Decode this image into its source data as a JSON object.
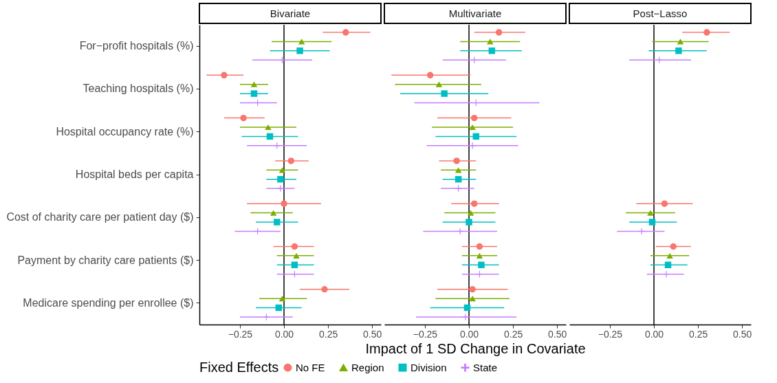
{
  "chart_data": [
    {
      "type": "scatter",
      "orientation": "horizontal",
      "title": "Bivariate",
      "categories": [
        "For−profit hospitals (%)",
        "Teaching hospitals (%)",
        "Hospital occupancy rate (%)",
        "Hospital beds per capita",
        "Cost of charity care per patient day ($)",
        "Payment by charity care patients ($)",
        "Medicare spending per enrollee ($)"
      ],
      "xlim": [
        -0.48,
        0.55
      ],
      "xticks": [
        {
          "value": -0.25,
          "label": "−0.25"
        },
        {
          "value": 0,
          "label": "0.00"
        },
        {
          "value": 0.25,
          "label": "0.25"
        },
        {
          "value": 0.5,
          "label": "0.50"
        }
      ],
      "ref_lines": [
        {
          "axis": "x",
          "value": 0
        }
      ],
      "legend": "bottom",
      "legend_title": "Fixed Effects",
      "series": [
        {
          "name": "No FE",
          "color": "#f8766d",
          "marker": "circle",
          "values": [
            0.35,
            -0.34,
            -0.23,
            0.04,
            0.0,
            0.06,
            0.23
          ],
          "errors": [
            [
              0.22,
              0.49
            ],
            [
              -0.44,
              -0.23
            ],
            [
              -0.34,
              -0.11
            ],
            [
              -0.05,
              0.14
            ],
            [
              -0.21,
              0.21
            ],
            [
              -0.06,
              0.17
            ],
            [
              0.09,
              0.37
            ]
          ]
        },
        {
          "name": "Region",
          "color": "#7cae00",
          "marker": "triangle",
          "values": [
            0.1,
            -0.17,
            -0.09,
            -0.01,
            -0.06,
            0.07,
            -0.01
          ],
          "errors": [
            [
              -0.07,
              0.27
            ],
            [
              -0.25,
              -0.09
            ],
            [
              -0.25,
              0.07
            ],
            [
              -0.1,
              0.08
            ],
            [
              -0.19,
              0.05
            ],
            [
              -0.04,
              0.17
            ],
            [
              -0.14,
              0.13
            ]
          ]
        },
        {
          "name": "Division",
          "color": "#00bfc4",
          "marker": "square",
          "values": [
            0.09,
            -0.17,
            -0.08,
            -0.02,
            -0.04,
            0.06,
            -0.03
          ],
          "errors": [
            [
              -0.08,
              0.26
            ],
            [
              -0.25,
              -0.09
            ],
            [
              -0.24,
              0.08
            ],
            [
              -0.1,
              0.07
            ],
            [
              -0.16,
              0.08
            ],
            [
              -0.04,
              0.17
            ],
            [
              -0.16,
              0.1
            ]
          ]
        },
        {
          "name": "State",
          "color": "#c77cff",
          "marker": "cross",
          "values": [
            -0.01,
            -0.15,
            -0.04,
            -0.02,
            -0.15,
            0.06,
            -0.1
          ],
          "errors": [
            [
              -0.18,
              0.16
            ],
            [
              -0.25,
              -0.04
            ],
            [
              -0.21,
              0.13
            ],
            [
              -0.1,
              0.06
            ],
            [
              -0.28,
              -0.02
            ],
            [
              -0.04,
              0.17
            ],
            [
              -0.25,
              0.05
            ]
          ]
        }
      ]
    },
    {
      "type": "scatter",
      "orientation": "horizontal",
      "title": "Multivariate",
      "xlabel": "Impact of 1 SD Change in Covariate",
      "tick_labels": "x",
      "xlim": [
        -0.48,
        0.55
      ],
      "xticks": [
        {
          "value": -0.25,
          "label": "−0.25"
        },
        {
          "value": 0,
          "label": "0.00"
        },
        {
          "value": 0.25,
          "label": "0.25"
        },
        {
          "value": 0.5,
          "label": "0.50"
        }
      ],
      "ref_lines": [
        {
          "axis": "x",
          "value": 0
        }
      ],
      "series": [
        {
          "name": "No FE",
          "color": "#f8766d",
          "marker": "circle",
          "values": [
            0.17,
            -0.22,
            0.03,
            -0.07,
            0.03,
            0.06,
            0.02
          ],
          "errors": [
            [
              0.03,
              0.32
            ],
            [
              -0.44,
              0.01
            ],
            [
              -0.18,
              0.24
            ],
            [
              -0.17,
              0.04
            ],
            [
              -0.1,
              0.17
            ],
            [
              -0.04,
              0.16
            ],
            [
              -0.18,
              0.22
            ]
          ]
        },
        {
          "name": "Region",
          "color": "#7cae00",
          "marker": "triangle",
          "values": [
            0.12,
            -0.17,
            0.02,
            -0.06,
            0.01,
            0.06,
            0.02
          ],
          "errors": [
            [
              -0.05,
              0.29
            ],
            [
              -0.42,
              0.07
            ],
            [
              -0.21,
              0.25
            ],
            [
              -0.16,
              0.04
            ],
            [
              -0.14,
              0.15
            ],
            [
              -0.04,
              0.16
            ],
            [
              -0.19,
              0.23
            ]
          ]
        },
        {
          "name": "Division",
          "color": "#00bfc4",
          "marker": "square",
          "values": [
            0.13,
            -0.14,
            0.04,
            -0.06,
            0.0,
            0.07,
            -0.01
          ],
          "errors": [
            [
              -0.05,
              0.3
            ],
            [
              -0.39,
              0.11
            ],
            [
              -0.19,
              0.27
            ],
            [
              -0.15,
              0.04
            ],
            [
              -0.15,
              0.15
            ],
            [
              -0.04,
              0.17
            ],
            [
              -0.22,
              0.2
            ]
          ]
        },
        {
          "name": "State",
          "color": "#c77cff",
          "marker": "cross",
          "values": [
            0.03,
            0.04,
            0.02,
            -0.06,
            -0.05,
            0.06,
            -0.02
          ],
          "errors": [
            [
              -0.15,
              0.21
            ],
            [
              -0.31,
              0.4
            ],
            [
              -0.24,
              0.28
            ],
            [
              -0.16,
              0.03
            ],
            [
              -0.26,
              0.16
            ],
            [
              -0.04,
              0.17
            ],
            [
              -0.3,
              0.27
            ]
          ]
        }
      ]
    },
    {
      "type": "scatter",
      "orientation": "horizontal",
      "title": "Post−Lasso",
      "tick_labels": "x",
      "xlim": [
        -0.48,
        0.55
      ],
      "xticks": [
        {
          "value": -0.25,
          "label": "−0.25"
        },
        {
          "value": 0,
          "label": "0.00"
        },
        {
          "value": 0.25,
          "label": "0.25"
        },
        {
          "value": 0.5,
          "label": "0.50"
        }
      ],
      "ref_lines": [
        {
          "axis": "x",
          "value": 0
        }
      ],
      "series": [
        {
          "name": "No FE",
          "color": "#f8766d",
          "marker": "circle",
          "values": [
            0.3,
            null,
            null,
            null,
            0.06,
            0.11,
            null
          ],
          "errors": [
            [
              0.16,
              0.43
            ],
            null,
            null,
            null,
            [
              -0.1,
              0.22
            ],
            [
              0.01,
              0.21
            ],
            null
          ]
        },
        {
          "name": "Region",
          "color": "#7cae00",
          "marker": "triangle",
          "values": [
            0.15,
            null,
            null,
            null,
            -0.02,
            0.09,
            null
          ],
          "errors": [
            [
              -0.01,
              0.31
            ],
            null,
            null,
            null,
            [
              -0.16,
              0.12
            ],
            [
              -0.02,
              0.2
            ],
            null
          ]
        },
        {
          "name": "Division",
          "color": "#00bfc4",
          "marker": "square",
          "values": [
            0.14,
            null,
            null,
            null,
            -0.01,
            0.08,
            null
          ],
          "errors": [
            [
              -0.03,
              0.3
            ],
            null,
            null,
            null,
            [
              -0.14,
              0.13
            ],
            [
              -0.02,
              0.19
            ],
            null
          ]
        },
        {
          "name": "State",
          "color": "#c77cff",
          "marker": "cross",
          "values": [
            0.03,
            null,
            null,
            null,
            -0.07,
            0.07,
            null
          ],
          "errors": [
            [
              -0.14,
              0.21
            ],
            null,
            null,
            null,
            [
              -0.21,
              0.06
            ],
            [
              -0.04,
              0.17
            ],
            null
          ]
        }
      ]
    }
  ]
}
